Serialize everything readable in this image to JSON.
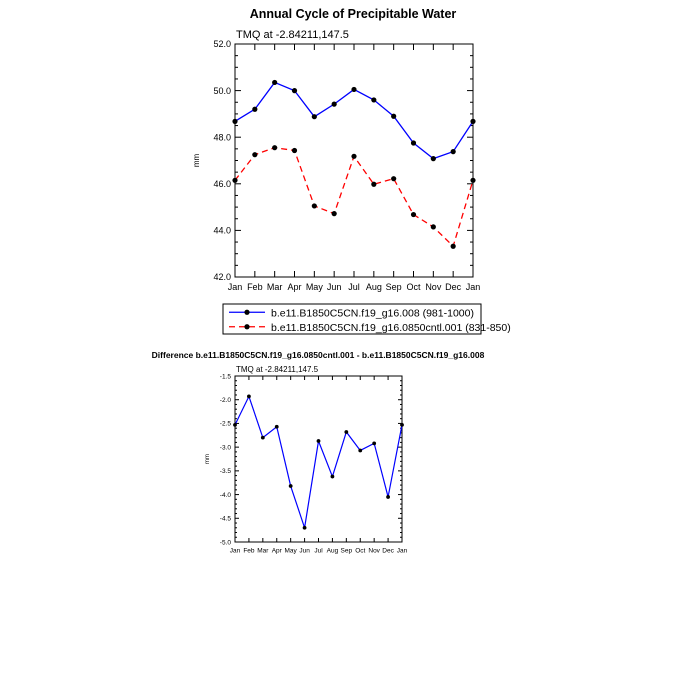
{
  "chart_data": [
    {
      "type": "line",
      "title": "Annual Cycle of Precipitable Water",
      "subtitle": "TMQ at -2.84211,147.5",
      "ylabel": "mm",
      "xlabel": "",
      "categories": [
        "Jan",
        "Feb",
        "Mar",
        "Apr",
        "May",
        "Jun",
        "Jul",
        "Aug",
        "Sep",
        "Oct",
        "Nov",
        "Dec",
        "Jan"
      ],
      "ylim": [
        42.0,
        52.0
      ],
      "yticks": [
        "42.0",
        "44.0",
        "46.0",
        "48.0",
        "50.0",
        "52.0"
      ],
      "grid": false,
      "legend_position": "bottom",
      "series": [
        {
          "name": "b.e11.B1850C5CN.f19_g16.008 (981-1000)",
          "color": "#0000ff",
          "dash": "solid",
          "values": [
            48.68,
            49.2,
            50.35,
            50.0,
            48.88,
            49.42,
            50.05,
            49.6,
            48.9,
            47.75,
            47.08,
            47.38,
            48.68
          ]
        },
        {
          "name": "b.e11.B1850C5CN.f19_g16.0850cntl.001 (831-850)",
          "color": "#ff0000",
          "dash": "dashed",
          "values": [
            46.15,
            47.25,
            47.55,
            47.43,
            45.05,
            44.72,
            47.18,
            45.98,
            46.22,
            44.68,
            44.15,
            43.32,
            46.15
          ]
        }
      ]
    },
    {
      "type": "line",
      "title": "Difference b.e11.B1850C5CN.f19_g16.0850cntl.001 - b.e11.B1850C5CN.f19_g16.008",
      "subtitle": "TMQ at -2.84211,147.5",
      "ylabel": "mm",
      "xlabel": "",
      "categories": [
        "Jan",
        "Feb",
        "Mar",
        "Apr",
        "May",
        "Jun",
        "Jul",
        "Aug",
        "Sep",
        "Oct",
        "Nov",
        "Dec",
        "Jan"
      ],
      "ylim": [
        -5.0,
        -1.5
      ],
      "yticks": [
        "-5.0",
        "-4.5",
        "-4.0",
        "-3.5",
        "-3.0",
        "-2.5",
        "-2.0",
        "-1.5"
      ],
      "grid": false,
      "series": [
        {
          "color": "#0000ff",
          "dash": "solid",
          "values": [
            -2.53,
            -1.93,
            -2.8,
            -2.57,
            -3.82,
            -4.7,
            -2.87,
            -3.62,
            -2.68,
            -3.07,
            -2.92,
            -4.05,
            -2.53
          ]
        }
      ]
    }
  ]
}
